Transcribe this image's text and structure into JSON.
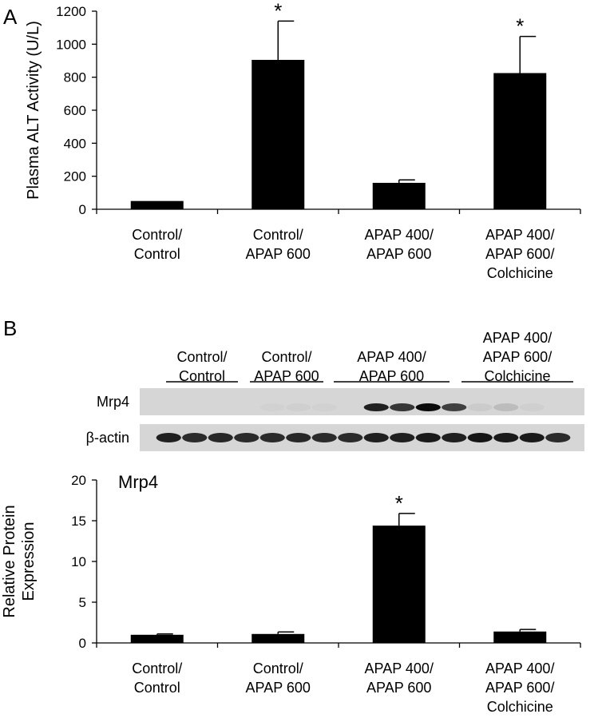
{
  "panels": [
    {
      "label": "A"
    },
    {
      "label": "B"
    }
  ],
  "chart_data": [
    {
      "type": "bar",
      "ylabel": "Plasma ALT Activity  (U/L)",
      "ylim": [
        0,
        1200
      ],
      "yticks": [
        0,
        200,
        400,
        600,
        800,
        1000,
        1200
      ],
      "categories": [
        [
          "Control/",
          "Control"
        ],
        [
          "Control/",
          "APAP 600"
        ],
        [
          "APAP 400/",
          "APAP 600"
        ],
        [
          "APAP 400/",
          "APAP 600/",
          "Colchicine"
        ]
      ],
      "values": [
        50,
        905,
        160,
        825
      ],
      "errors": [
        0,
        235,
        18,
        222
      ],
      "significance": [
        "",
        "*",
        "",
        "*"
      ],
      "bar_color": "#000000"
    },
    {
      "type": "bar",
      "title": "Mrp4",
      "ylabel": "Relative Protein\nExpression",
      "ylim": [
        0,
        20
      ],
      "yticks": [
        0,
        5,
        10,
        15,
        20
      ],
      "categories": [
        [
          "Control/",
          "Control"
        ],
        [
          "Control/",
          "APAP 600"
        ],
        [
          "APAP 400/",
          "APAP 600"
        ],
        [
          "APAP 400/",
          "APAP 600/",
          "Colchicine"
        ]
      ],
      "values": [
        1.0,
        1.1,
        14.4,
        1.4
      ],
      "errors": [
        0.1,
        0.25,
        1.5,
        0.25
      ],
      "significance": [
        "",
        "",
        "*",
        ""
      ],
      "bar_color": "#000000"
    }
  ],
  "blot": {
    "groups": [
      [
        "Control/",
        "Control"
      ],
      [
        "Control/",
        "APAP 600"
      ],
      [
        "APAP 400/",
        "APAP 600"
      ],
      [
        "APAP 400/",
        "APAP 600/",
        "Colchicine"
      ]
    ],
    "rows": [
      {
        "label": "Mrp4",
        "band_intensity": [
          0.0,
          0.0,
          0.0,
          0.0,
          0.02,
          0.03,
          0.02,
          0.0,
          0.85,
          0.75,
          0.95,
          0.7,
          0.05,
          0.12,
          0.03,
          0.0
        ]
      },
      {
        "label": "β-actin",
        "band_intensity": [
          0.85,
          0.8,
          0.82,
          0.8,
          0.8,
          0.82,
          0.8,
          0.8,
          0.85,
          0.85,
          0.88,
          0.85,
          0.9,
          0.88,
          0.88,
          0.8
        ]
      }
    ]
  }
}
